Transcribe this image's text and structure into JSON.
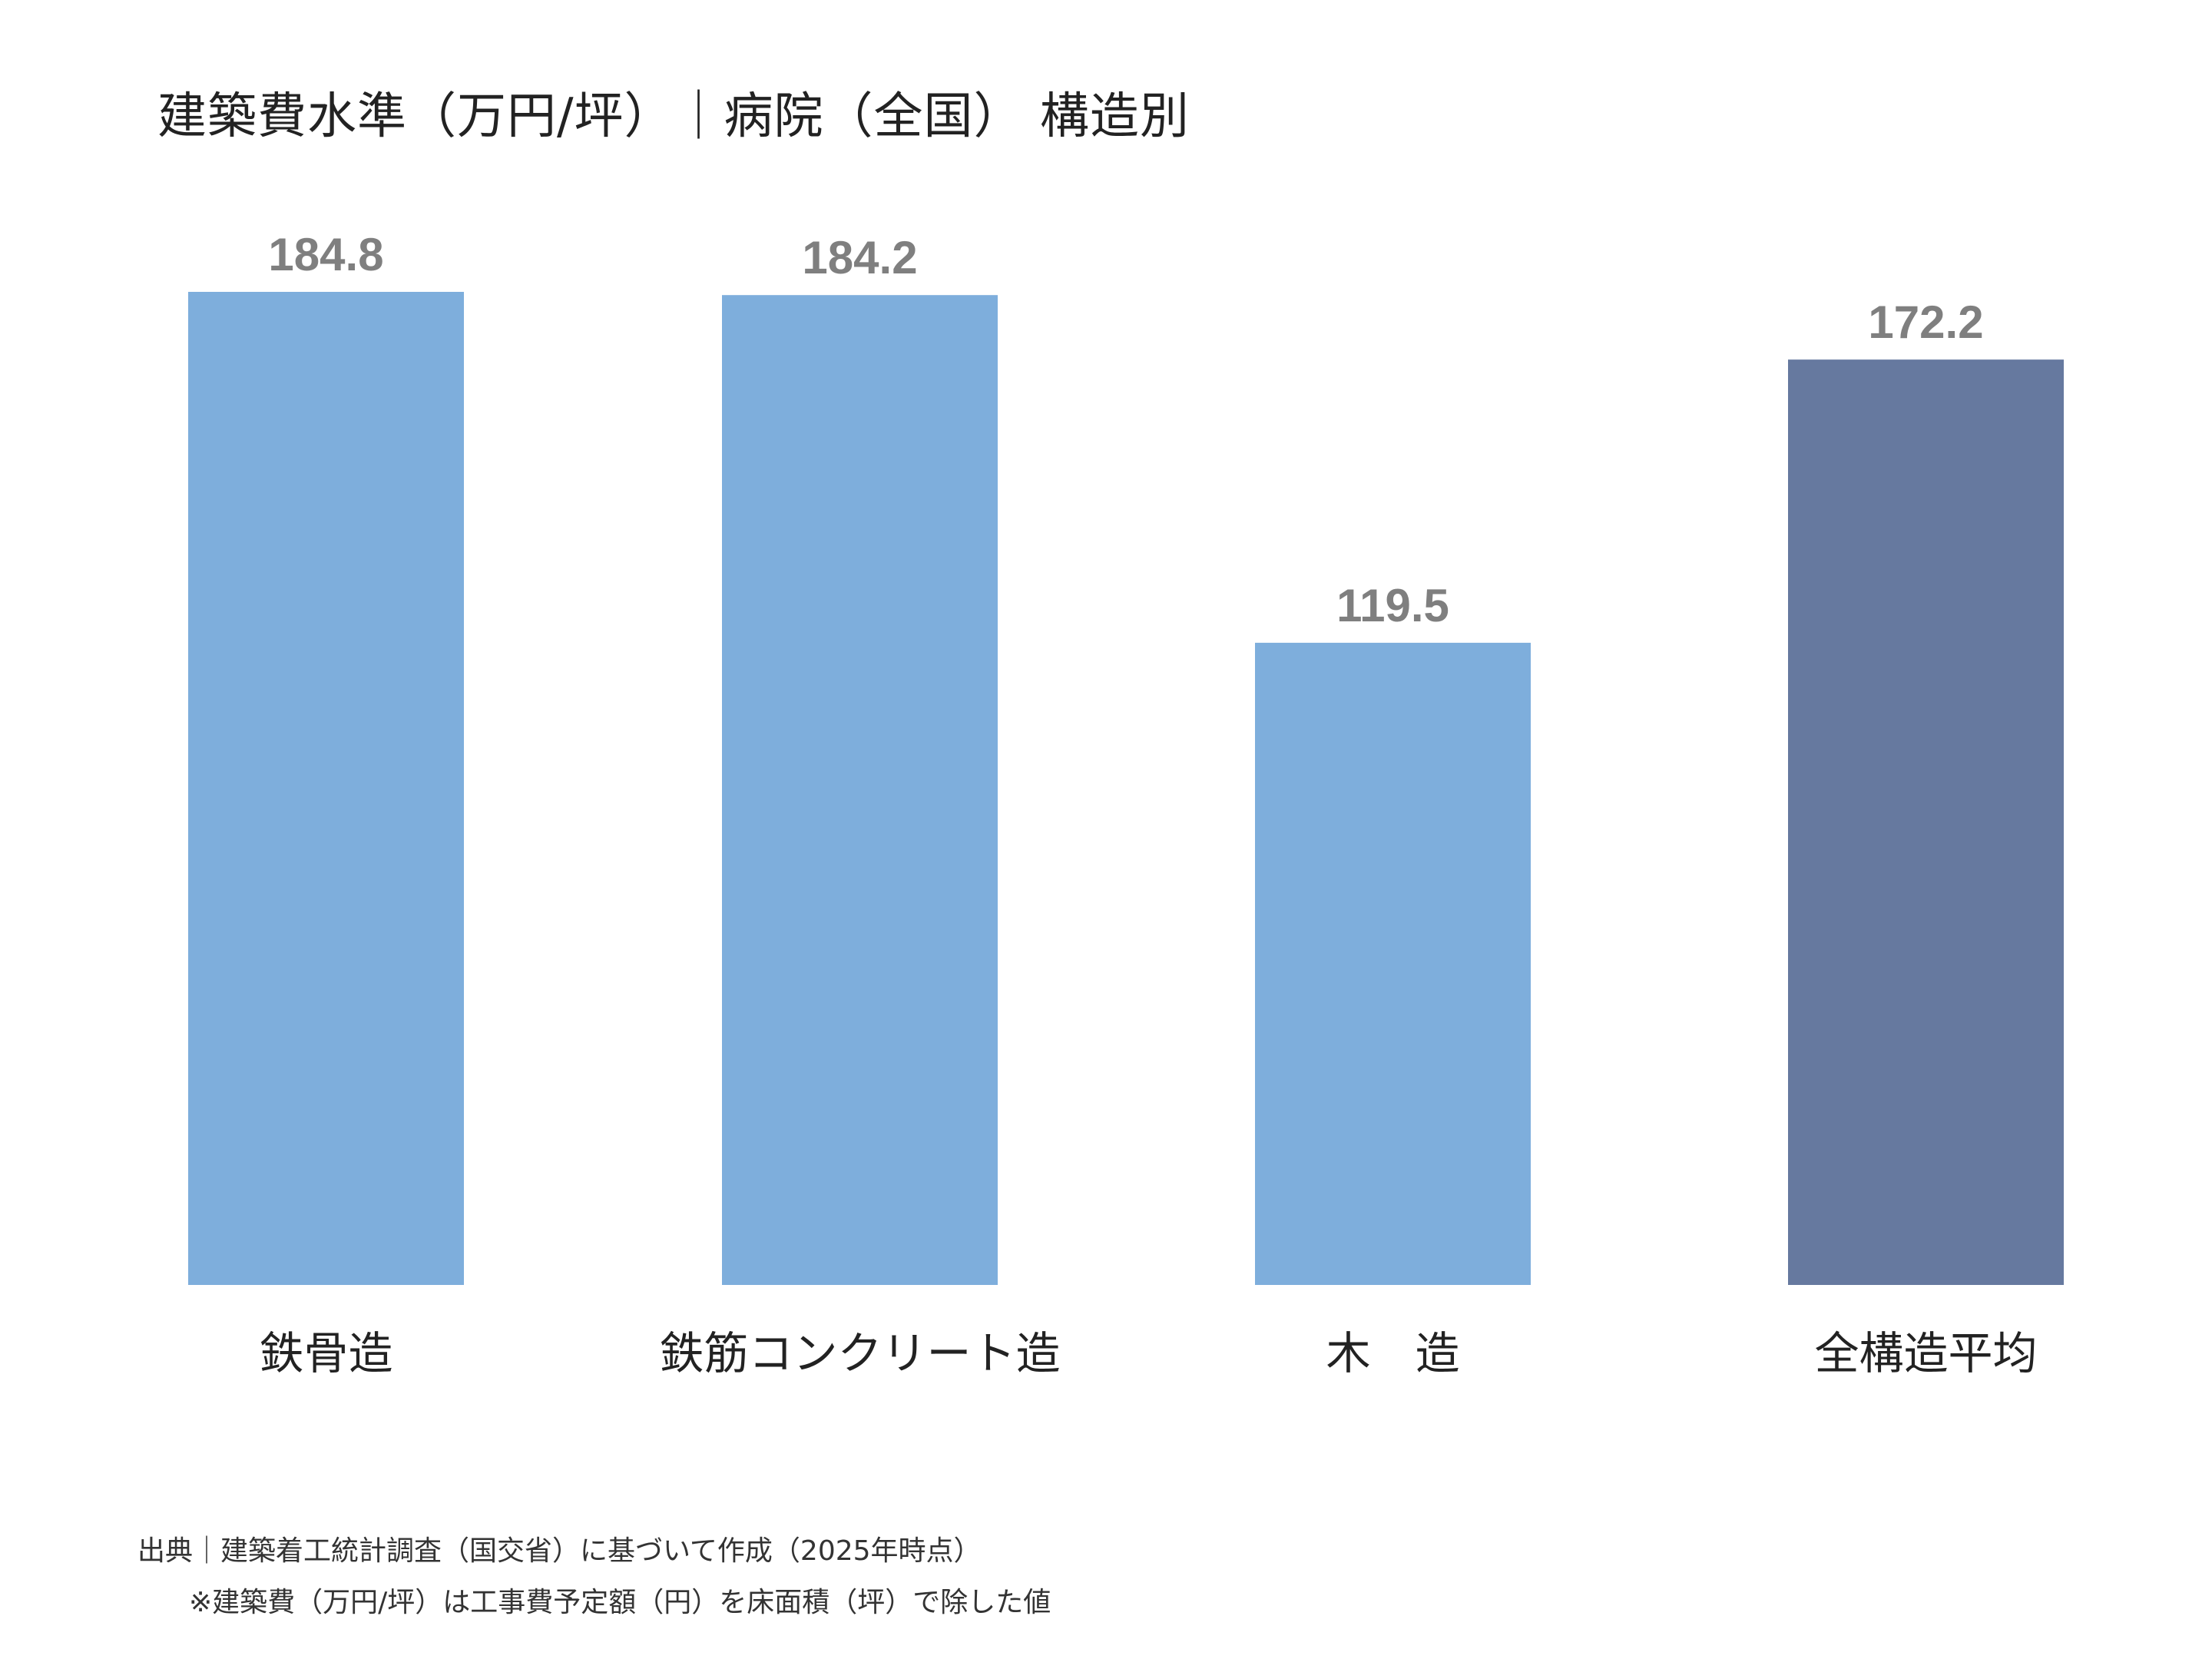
{
  "title": "建築費水準（万円/坪）｜病院（全国） 構造別",
  "chart_data": {
    "type": "bar",
    "title": "建築費水準（万円/坪）｜病院（全国） 構造別",
    "categories": [
      "鉄骨造",
      "鉄筋コンクリート造",
      "木　造",
      "全構造平均"
    ],
    "values": [
      184.8,
      184.2,
      119.5,
      172.2
    ],
    "value_labels": [
      "184.8",
      "184.2",
      "119.5",
      "172.2"
    ],
    "colors": [
      "#7EAEDC",
      "#7EAEDC",
      "#7EAEDC",
      "#66799F"
    ],
    "ylim": [
      0,
      184.8
    ],
    "grid": false,
    "axes_visible": false,
    "legend": "none"
  },
  "footer": {
    "source": "出典｜建築着工統計調査（国交省）に基づいて作成（2025年時点）",
    "note": "※建築費（万円/坪）は工事費予定額（円）を床面積（坪）で除した値"
  }
}
